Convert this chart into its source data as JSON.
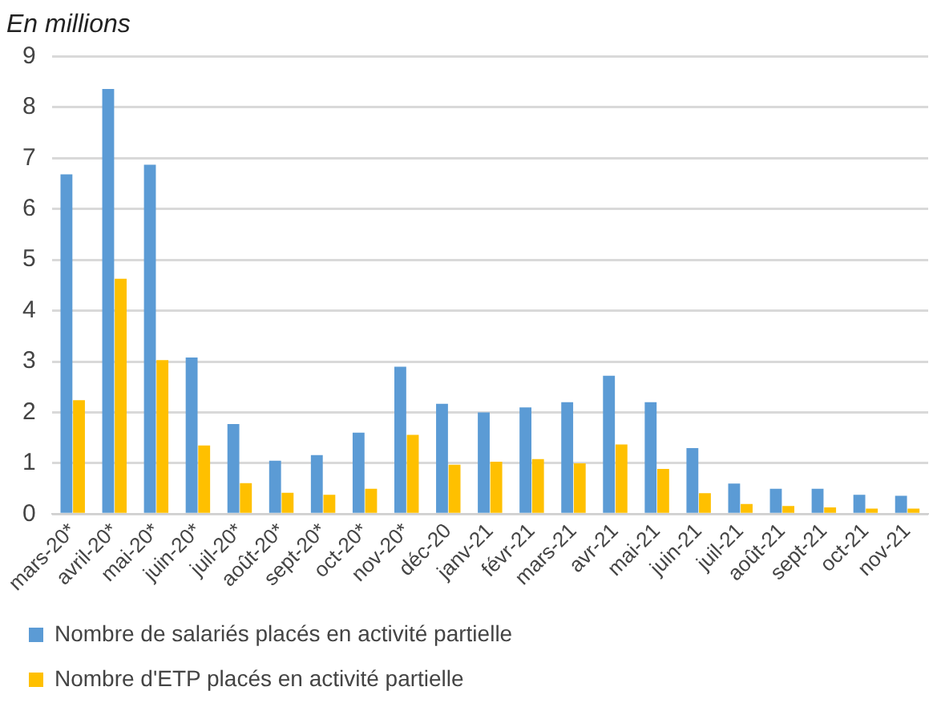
{
  "chart_data": {
    "type": "bar",
    "title": "En millions",
    "categories": [
      "mars-20*",
      "avril-20*",
      "mai-20*",
      "juin-20*",
      "juil-20*",
      "août-20*",
      "sept-20*",
      "oct-20*",
      "nov-20*",
      "déc-20",
      "janv-21",
      "févr-21",
      "mars-21",
      "avr-21",
      "mai-21",
      "juin-21",
      "juil-21",
      "août-21",
      "sept-21",
      "oct-21",
      "nov-21"
    ],
    "series": [
      {
        "name": "Nombre de salariés placés en activité partielle",
        "color": "#5b9bd5",
        "values": [
          6.68,
          8.36,
          6.87,
          3.08,
          1.77,
          1.05,
          1.16,
          1.6,
          2.9,
          2.17,
          2.0,
          2.1,
          2.2,
          2.72,
          2.2,
          1.3,
          0.6,
          0.5,
          0.5,
          0.38,
          0.36
        ]
      },
      {
        "name": "Nombre d'ETP placés en activité partielle",
        "color": "#ffc000",
        "values": [
          2.24,
          4.63,
          3.03,
          1.35,
          0.61,
          0.42,
          0.38,
          0.5,
          1.56,
          0.97,
          1.03,
          1.08,
          1.0,
          1.37,
          0.89,
          0.41,
          0.2,
          0.16,
          0.13,
          0.11,
          0.11
        ]
      }
    ],
    "ylim": [
      0,
      9
    ],
    "yticks": [
      0,
      1,
      2,
      3,
      4,
      5,
      6,
      7,
      8,
      9
    ],
    "grid": "y",
    "legend": "bottom"
  }
}
